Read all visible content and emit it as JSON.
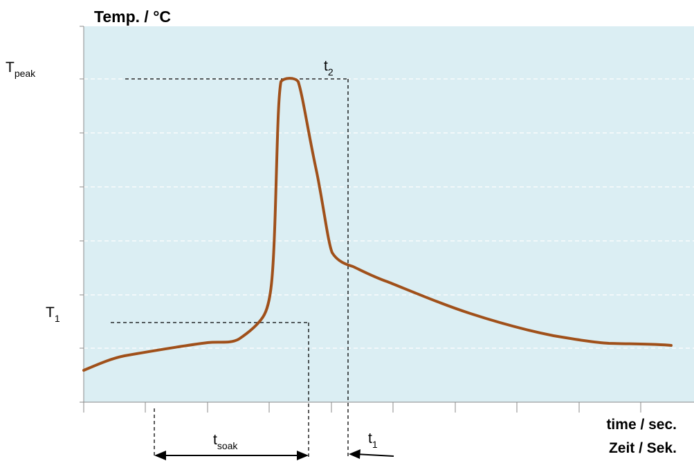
{
  "chart_data": {
    "type": "line",
    "ylabel": "Temp. / °C",
    "xlabel_en": "time / sec.",
    "xlabel_de": "Zeit / Sek.",
    "grid": true,
    "y_markers": [
      {
        "main": "T",
        "sub": "peak"
      },
      {
        "main": "T",
        "sub": "1"
      }
    ],
    "time_markers": [
      {
        "main": "t",
        "sub": "2"
      },
      {
        "main": "t",
        "sub": "soak"
      },
      {
        "main": "t",
        "sub": "1"
      }
    ],
    "colors": {
      "plot_background": "#dbeef3",
      "curve": "#a0501a",
      "grid": "#ffffff",
      "axis": "#888888",
      "marker_lines": "#000000"
    }
  }
}
